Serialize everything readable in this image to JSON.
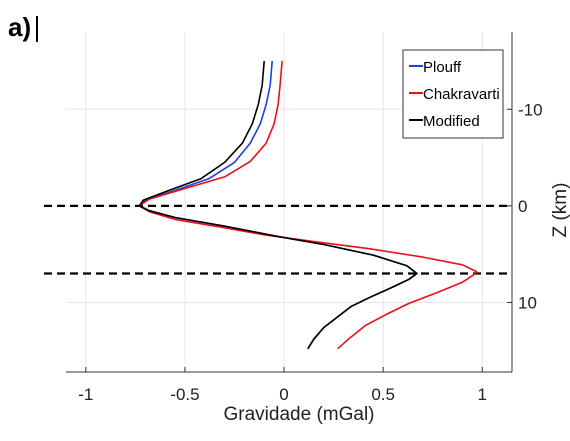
{
  "panel_label": "a)",
  "chart_data": {
    "type": "line",
    "xlabel": "Gravidade (mGal)",
    "ylabel": "Z (km)",
    "xlim": [
      -1.1,
      1.15
    ],
    "ylim": [
      17.2,
      -18
    ],
    "y_axis_location": "right",
    "y_direction": "reversed",
    "grid": true,
    "legend_position": "top-right",
    "x_ticks": [
      -1,
      -0.5,
      0,
      0.5,
      1
    ],
    "x_tick_labels": [
      "-1",
      "-0.5",
      "0",
      "0.5",
      "1"
    ],
    "y_ticks": [
      -10,
      0,
      10
    ],
    "y_tick_labels": [
      "-10",
      "0",
      "10"
    ],
    "reference_lines": [
      {
        "y": 0,
        "style": "dashed",
        "color": "#000000"
      },
      {
        "y": 7,
        "style": "dashed",
        "color": "#000000"
      }
    ],
    "series": [
      {
        "name": "Plouff",
        "color": "#1f3fdc",
        "points": [
          [
            0.12,
            14.8
          ],
          [
            0.15,
            13.8
          ],
          [
            0.2,
            12.6
          ],
          [
            0.27,
            11.5
          ],
          [
            0.34,
            10.4
          ],
          [
            0.44,
            9.4
          ],
          [
            0.56,
            8.3
          ],
          [
            0.63,
            7.6
          ],
          [
            0.67,
            7.0
          ],
          [
            0.62,
            6.2
          ],
          [
            0.45,
            5.1
          ],
          [
            0.2,
            4.0
          ],
          [
            -0.05,
            3.1
          ],
          [
            -0.3,
            2.1
          ],
          [
            -0.55,
            1.2
          ],
          [
            -0.68,
            0.5
          ],
          [
            -0.73,
            0.0
          ],
          [
            -0.7,
            -0.6
          ],
          [
            -0.55,
            -1.6
          ],
          [
            -0.38,
            -2.8
          ],
          [
            -0.25,
            -4.5
          ],
          [
            -0.17,
            -6.5
          ],
          [
            -0.12,
            -8.5
          ],
          [
            -0.09,
            -10.5
          ],
          [
            -0.07,
            -12.5
          ],
          [
            -0.06,
            -15.0
          ]
        ]
      },
      {
        "name": "Chakravarti",
        "color": "#e8101a",
        "points": [
          [
            0.27,
            14.8
          ],
          [
            0.33,
            13.7
          ],
          [
            0.41,
            12.4
          ],
          [
            0.52,
            11.2
          ],
          [
            0.63,
            10.1
          ],
          [
            0.77,
            9.0
          ],
          [
            0.9,
            7.9
          ],
          [
            0.96,
            7.1
          ],
          [
            0.97,
            6.8
          ],
          [
            0.9,
            6.1
          ],
          [
            0.7,
            5.3
          ],
          [
            0.42,
            4.4
          ],
          [
            0.15,
            3.7
          ],
          [
            -0.1,
            3.0
          ],
          [
            -0.32,
            2.2
          ],
          [
            -0.55,
            1.4
          ],
          [
            -0.68,
            0.6
          ],
          [
            -0.73,
            0.0
          ],
          [
            -0.68,
            -0.7
          ],
          [
            -0.5,
            -1.8
          ],
          [
            -0.3,
            -3.0
          ],
          [
            -0.17,
            -4.6
          ],
          [
            -0.09,
            -6.5
          ],
          [
            -0.05,
            -8.5
          ],
          [
            -0.03,
            -10.5
          ],
          [
            -0.02,
            -12.5
          ],
          [
            -0.01,
            -15.0
          ]
        ]
      },
      {
        "name": "Modified",
        "color": "#000000",
        "points": [
          [
            0.12,
            14.8
          ],
          [
            0.15,
            13.8
          ],
          [
            0.2,
            12.6
          ],
          [
            0.27,
            11.5
          ],
          [
            0.34,
            10.4
          ],
          [
            0.44,
            9.4
          ],
          [
            0.56,
            8.3
          ],
          [
            0.63,
            7.6
          ],
          [
            0.67,
            7.0
          ],
          [
            0.62,
            6.2
          ],
          [
            0.45,
            5.1
          ],
          [
            0.2,
            4.0
          ],
          [
            -0.05,
            3.1
          ],
          [
            -0.3,
            2.1
          ],
          [
            -0.55,
            1.2
          ],
          [
            -0.68,
            0.5
          ],
          [
            -0.73,
            0.0
          ],
          [
            -0.71,
            -0.6
          ],
          [
            -0.58,
            -1.6
          ],
          [
            -0.42,
            -2.8
          ],
          [
            -0.3,
            -4.5
          ],
          [
            -0.21,
            -6.5
          ],
          [
            -0.16,
            -8.5
          ],
          [
            -0.13,
            -10.5
          ],
          [
            -0.11,
            -12.5
          ],
          [
            -0.1,
            -15.0
          ]
        ]
      }
    ]
  }
}
